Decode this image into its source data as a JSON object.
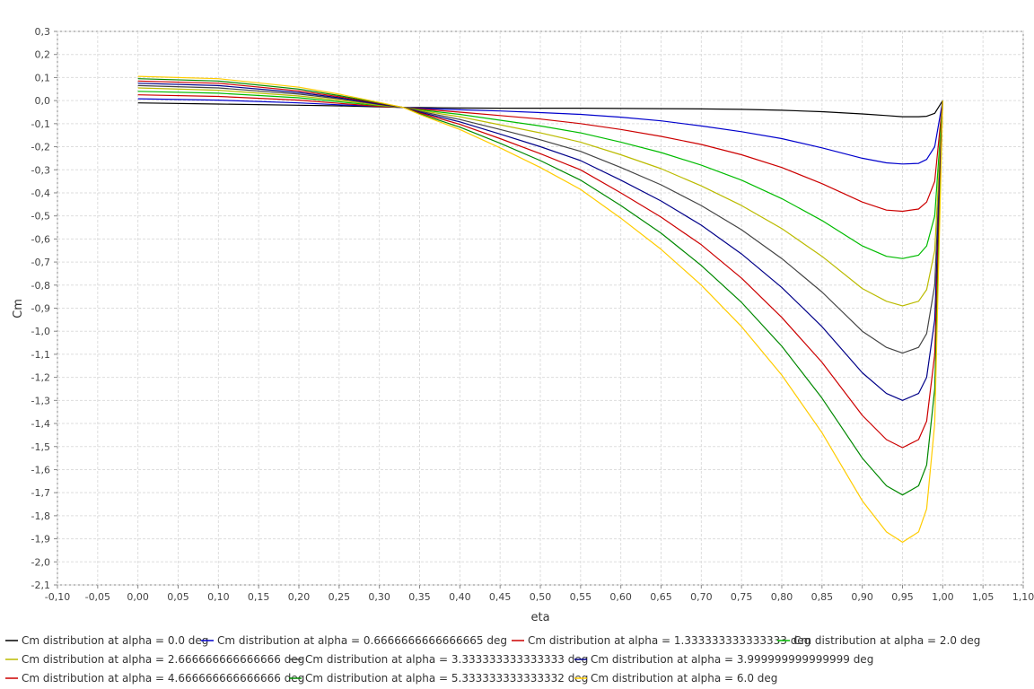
{
  "chart_data": {
    "type": "line",
    "title": "",
    "xlabel": "eta",
    "ylabel": "Cm",
    "xlim": [
      -0.1,
      1.1
    ],
    "ylim": [
      -2.1,
      0.3
    ],
    "x_ticks": [
      -0.1,
      -0.05,
      0.0,
      0.05,
      0.1,
      0.15,
      0.2,
      0.25,
      0.3,
      0.35,
      0.4,
      0.45,
      0.5,
      0.55,
      0.6,
      0.65,
      0.7,
      0.75,
      0.8,
      0.85,
      0.9,
      0.95,
      1.0,
      1.05,
      1.1
    ],
    "x_tick_labels": [
      "-0,10",
      "-0,05",
      "0,00",
      "0,05",
      "0,10",
      "0,15",
      "0,20",
      "0,25",
      "0,30",
      "0,35",
      "0,40",
      "0,45",
      "0,50",
      "0,55",
      "0,60",
      "0,65",
      "0,70",
      "0,75",
      "0,80",
      "0,85",
      "0,90",
      "0,95",
      "1,00",
      "1,05",
      "1,10"
    ],
    "y_ticks": [
      0.3,
      0.2,
      0.1,
      0.0,
      -0.1,
      -0.2,
      -0.3,
      -0.4,
      -0.5,
      -0.6,
      -0.7,
      -0.8,
      -0.9,
      -1.0,
      -1.1,
      -1.2,
      -1.3,
      -1.4,
      -1.5,
      -1.6,
      -1.7,
      -1.8,
      -1.9,
      -2.0,
      -2.1
    ],
    "y_tick_labels": [
      "0,3",
      "0,2",
      "0,1",
      "0,0",
      "-0,1",
      "-0,2",
      "-0,3",
      "-0,4",
      "-0,5",
      "-0,6",
      "-0,7",
      "-0,8",
      "-0,9",
      "-1,0",
      "-1,1",
      "-1,2",
      "-1,3",
      "-1,4",
      "-1,5",
      "-1,6",
      "-1,7",
      "-1,8",
      "-1,9",
      "-2,0",
      "-2,1"
    ],
    "grid": true,
    "legend_position": "bottom",
    "x": [
      0.0,
      0.1,
      0.2,
      0.25,
      0.3,
      0.33,
      0.35,
      0.4,
      0.45,
      0.5,
      0.55,
      0.6,
      0.65,
      0.7,
      0.75,
      0.8,
      0.85,
      0.9,
      0.93,
      0.95,
      0.97,
      0.98,
      0.99,
      1.0
    ],
    "series": [
      {
        "name": "Cm distribution at alpha = 0.0 deg",
        "color": "#000000",
        "values": [
          -0.01,
          -0.015,
          -0.02,
          -0.023,
          -0.027,
          -0.03,
          -0.03,
          -0.032,
          -0.033,
          -0.033,
          -0.033,
          -0.034,
          -0.035,
          -0.036,
          -0.038,
          -0.042,
          -0.048,
          -0.058,
          -0.065,
          -0.07,
          -0.07,
          -0.068,
          -0.055,
          0.0
        ]
      },
      {
        "name": "Cm distribution at alpha = 0.6666666666666665 deg",
        "color": "#0000cc",
        "values": [
          0.008,
          0.002,
          -0.01,
          -0.018,
          -0.025,
          -0.03,
          -0.033,
          -0.04,
          -0.045,
          -0.052,
          -0.06,
          -0.072,
          -0.088,
          -0.11,
          -0.135,
          -0.165,
          -0.205,
          -0.25,
          -0.27,
          -0.275,
          -0.272,
          -0.255,
          -0.2,
          0.0
        ]
      },
      {
        "name": "Cm distribution at alpha = 1.333333333333333 deg",
        "color": "#cc0000",
        "values": [
          0.025,
          0.018,
          0.002,
          -0.012,
          -0.025,
          -0.03,
          -0.036,
          -0.05,
          -0.065,
          -0.08,
          -0.1,
          -0.125,
          -0.155,
          -0.19,
          -0.235,
          -0.29,
          -0.36,
          -0.44,
          -0.475,
          -0.48,
          -0.47,
          -0.44,
          -0.35,
          0.0
        ]
      },
      {
        "name": "Cm distribution at alpha = 2.0 deg",
        "color": "#00bb00",
        "values": [
          0.04,
          0.032,
          0.012,
          -0.005,
          -0.022,
          -0.03,
          -0.04,
          -0.06,
          -0.085,
          -0.11,
          -0.14,
          -0.18,
          -0.225,
          -0.28,
          -0.345,
          -0.425,
          -0.52,
          -0.63,
          -0.675,
          -0.685,
          -0.67,
          -0.63,
          -0.5,
          0.0
        ]
      },
      {
        "name": "Cm distribution at alpha = 2.666666666666666 deg",
        "color": "#bbbb00",
        "values": [
          0.055,
          0.045,
          0.02,
          0.002,
          -0.02,
          -0.03,
          -0.043,
          -0.07,
          -0.105,
          -0.14,
          -0.18,
          -0.235,
          -0.295,
          -0.37,
          -0.455,
          -0.555,
          -0.675,
          -0.815,
          -0.87,
          -0.89,
          -0.87,
          -0.82,
          -0.65,
          0.0
        ]
      },
      {
        "name": "Cm distribution at alpha = 3.333333333333333 deg",
        "color": "#444444",
        "values": [
          0.065,
          0.055,
          0.028,
          0.008,
          -0.017,
          -0.03,
          -0.046,
          -0.082,
          -0.125,
          -0.17,
          -0.22,
          -0.29,
          -0.365,
          -0.455,
          -0.56,
          -0.685,
          -0.83,
          -1.0,
          -1.07,
          -1.095,
          -1.07,
          -1.01,
          -0.8,
          0.0
        ]
      },
      {
        "name": "Cm distribution at alpha = 3.999999999999999 deg",
        "color": "#000088",
        "values": [
          0.075,
          0.065,
          0.035,
          0.012,
          -0.015,
          -0.03,
          -0.05,
          -0.092,
          -0.145,
          -0.2,
          -0.26,
          -0.345,
          -0.435,
          -0.54,
          -0.665,
          -0.81,
          -0.98,
          -1.18,
          -1.27,
          -1.3,
          -1.27,
          -1.2,
          -0.95,
          0.0
        ]
      },
      {
        "name": "Cm distribution at alpha = 4.666666666666666 deg",
        "color": "#cc0000",
        "values": [
          0.085,
          0.075,
          0.042,
          0.017,
          -0.012,
          -0.03,
          -0.053,
          -0.103,
          -0.165,
          -0.23,
          -0.3,
          -0.4,
          -0.505,
          -0.625,
          -0.77,
          -0.94,
          -1.135,
          -1.365,
          -1.47,
          -1.505,
          -1.47,
          -1.39,
          -1.1,
          0.0
        ]
      },
      {
        "name": "Cm distribution at alpha = 5.333333333333332 deg",
        "color": "#008800",
        "values": [
          0.095,
          0.085,
          0.05,
          0.022,
          -0.01,
          -0.03,
          -0.057,
          -0.115,
          -0.185,
          -0.26,
          -0.345,
          -0.455,
          -0.575,
          -0.715,
          -0.875,
          -1.065,
          -1.29,
          -1.55,
          -1.67,
          -1.71,
          -1.67,
          -1.58,
          -1.25,
          0.0
        ]
      },
      {
        "name": "Cm distribution at alpha = 6.0 deg",
        "color": "#ffcc00",
        "values": [
          0.105,
          0.095,
          0.058,
          0.028,
          -0.008,
          -0.03,
          -0.06,
          -0.125,
          -0.205,
          -0.29,
          -0.385,
          -0.51,
          -0.645,
          -0.8,
          -0.98,
          -1.19,
          -1.44,
          -1.735,
          -1.87,
          -1.915,
          -1.87,
          -1.77,
          -1.4,
          0.0
        ]
      }
    ]
  }
}
